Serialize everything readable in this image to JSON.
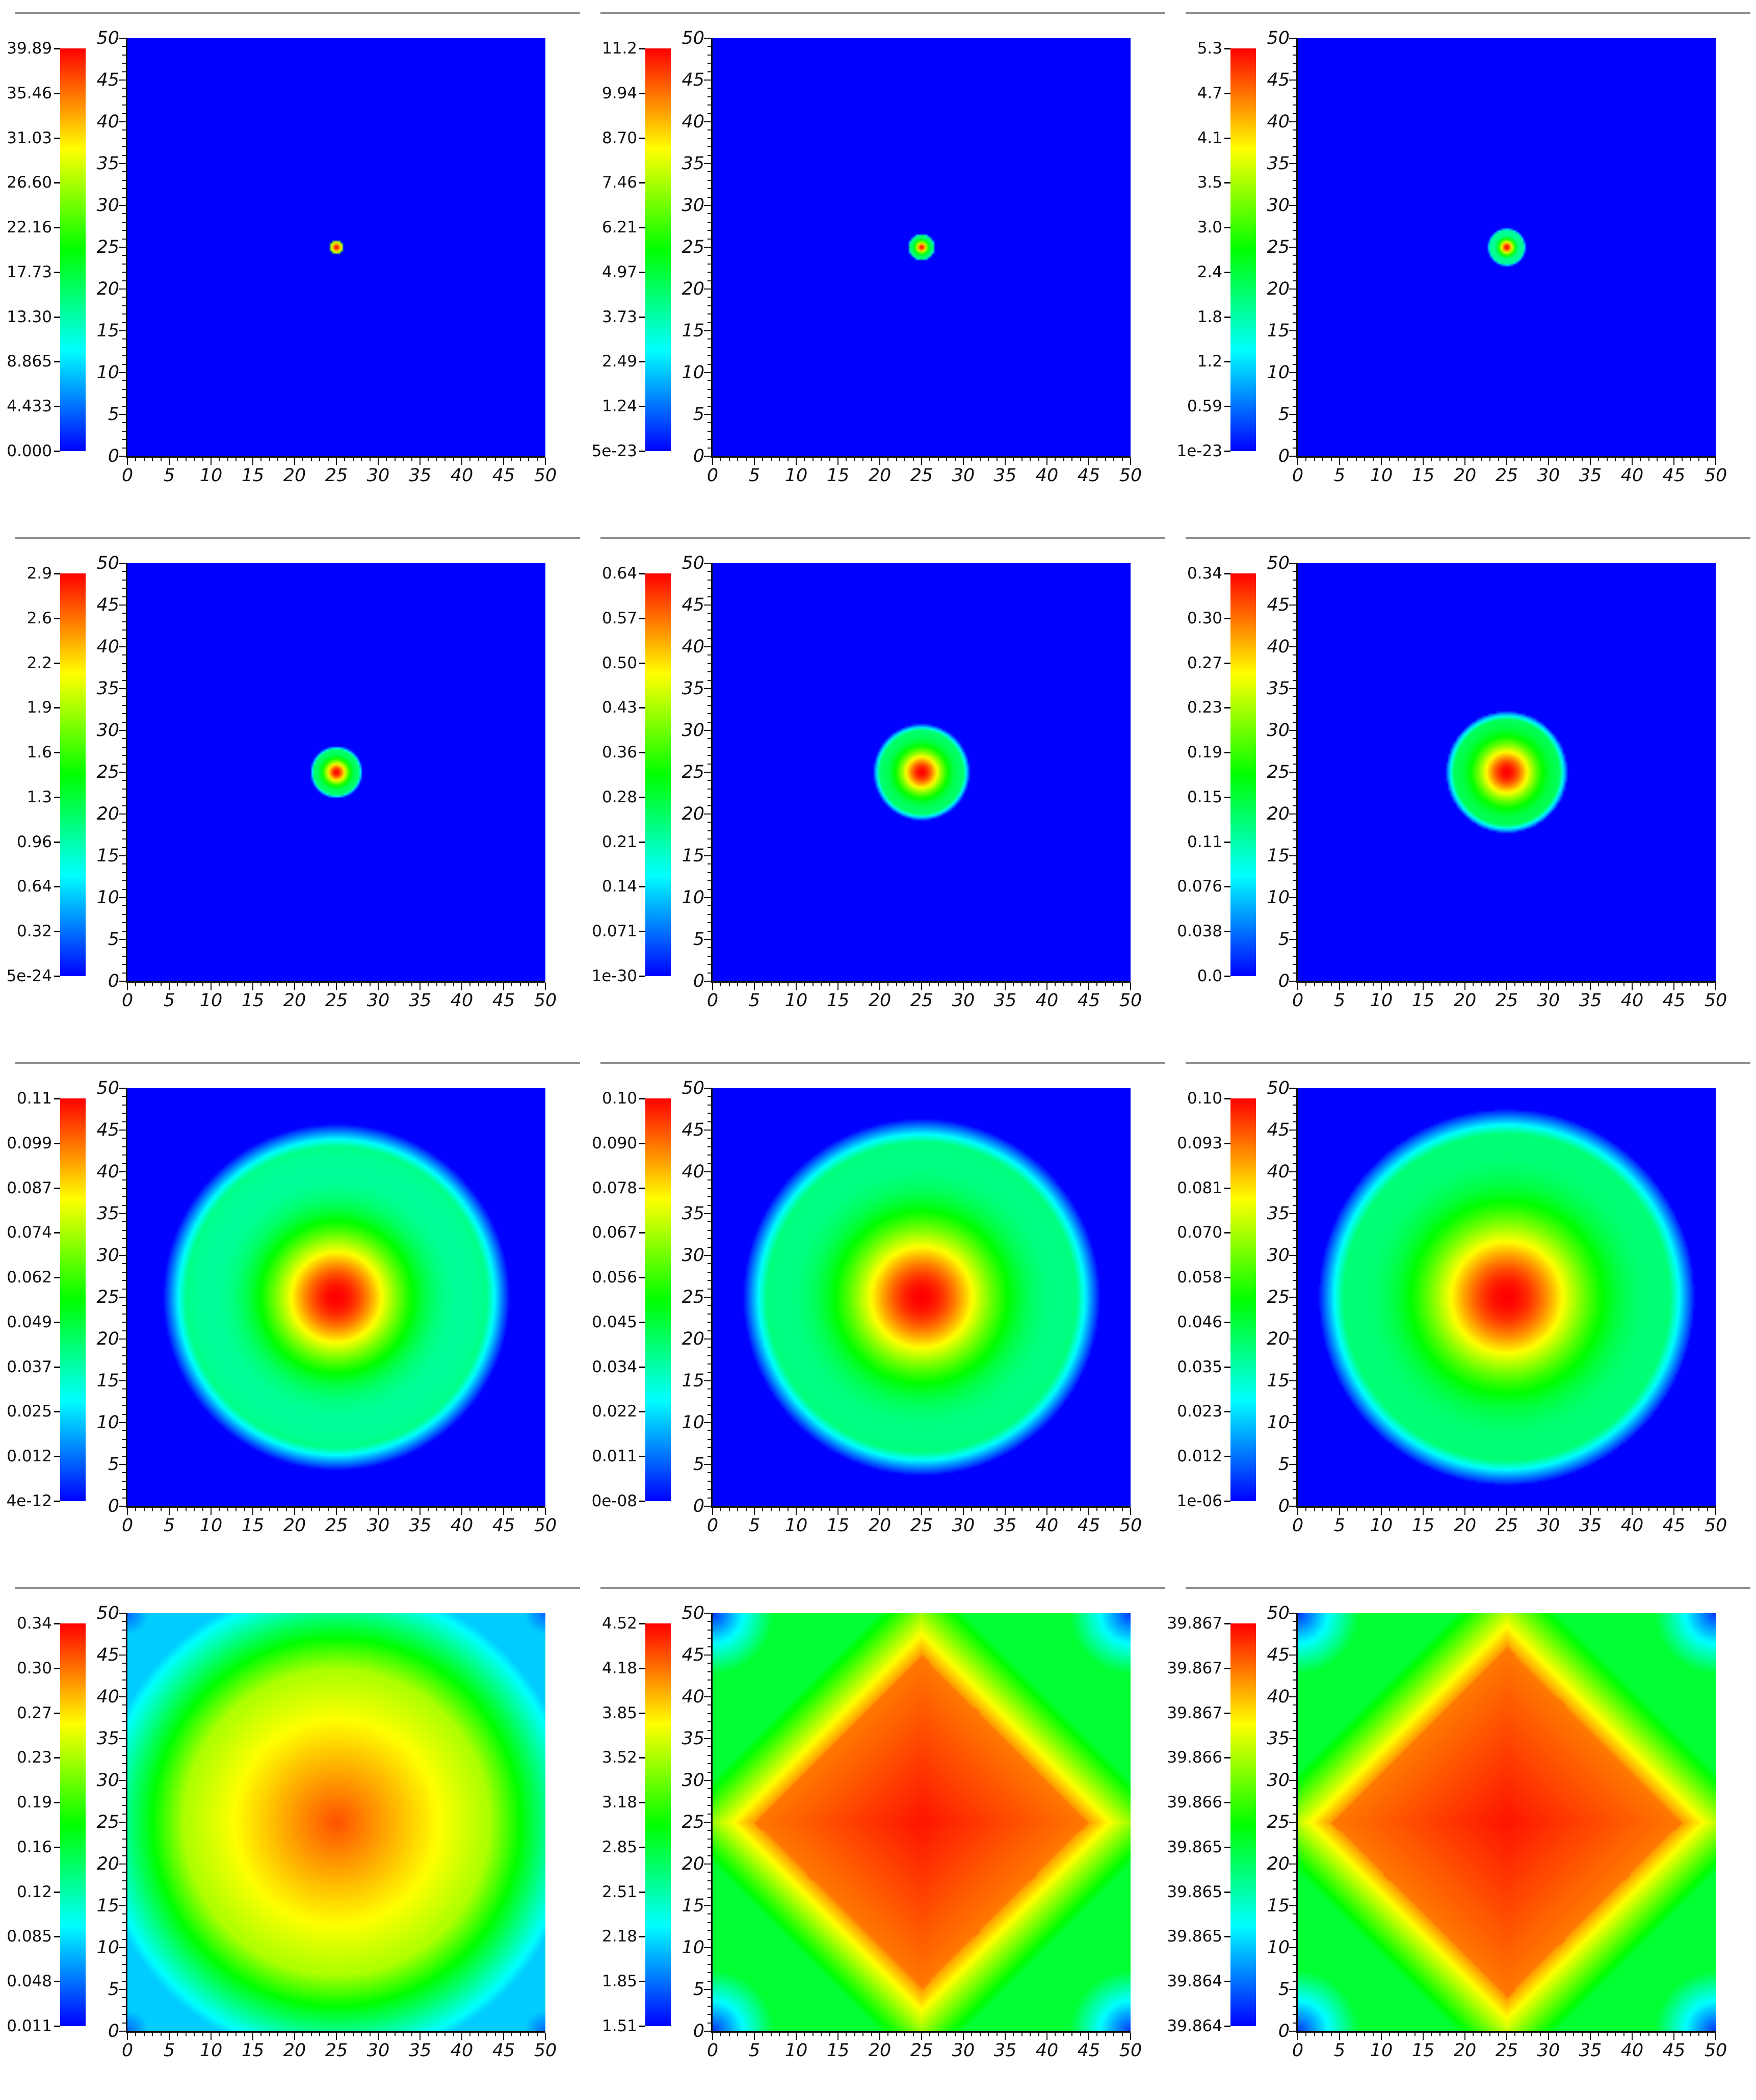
{
  "colors": {
    "background": "#ffffff",
    "divider": "#8c8c8c",
    "colormap": [
      "#0000ff",
      "#00ffff",
      "#00ff00",
      "#ffff00",
      "#ff0000"
    ]
  },
  "chart_data": [
    {
      "type": "heatmap",
      "x_ticks": [
        "0",
        "5",
        "10",
        "15",
        "20",
        "25",
        "30",
        "35",
        "40",
        "45",
        "50"
      ],
      "y_ticks": [
        "0",
        "5",
        "10",
        "15",
        "20",
        "25",
        "30",
        "35",
        "40",
        "45",
        "50"
      ],
      "xlim": [
        0,
        50
      ],
      "ylim": [
        0,
        50
      ],
      "colorbar_labels": [
        "39.89",
        "35.46",
        "31.03",
        "26.60",
        "22.16",
        "17.73",
        "13.30",
        "8.865",
        "4.433",
        "0.000"
      ],
      "pattern": "ring",
      "center": [
        25,
        25
      ],
      "inner_radius": 0,
      "outer_radius": 0.7,
      "background_level": 0.0
    },
    {
      "type": "heatmap",
      "x_ticks": [
        "0",
        "5",
        "10",
        "15",
        "20",
        "25",
        "30",
        "35",
        "40",
        "45",
        "50"
      ],
      "y_ticks": [
        "0",
        "5",
        "10",
        "15",
        "20",
        "25",
        "30",
        "35",
        "40",
        "45",
        "50"
      ],
      "xlim": [
        0,
        50
      ],
      "ylim": [
        0,
        50
      ],
      "colorbar_labels": [
        "11.2",
        "9.94",
        "8.70",
        "7.46",
        "6.21",
        "4.97",
        "3.73",
        "2.49",
        "1.24",
        "5e-23"
      ],
      "pattern": "ring",
      "center": [
        25,
        25
      ],
      "inner_radius": 0.3,
      "outer_radius": 1.4,
      "background_level": 0.0
    },
    {
      "type": "heatmap",
      "x_ticks": [
        "0",
        "5",
        "10",
        "15",
        "20",
        "25",
        "30",
        "35",
        "40",
        "45",
        "50"
      ],
      "y_ticks": [
        "0",
        "5",
        "10",
        "15",
        "20",
        "25",
        "30",
        "35",
        "40",
        "45",
        "50"
      ],
      "xlim": [
        0,
        50
      ],
      "ylim": [
        0,
        50
      ],
      "colorbar_labels": [
        "5.3",
        "4.7",
        "4.1",
        "3.5",
        "3.0",
        "2.4",
        "1.8",
        "1.2",
        "0.59",
        "1e-23"
      ],
      "pattern": "ring",
      "center": [
        25,
        25
      ],
      "inner_radius": 0.5,
      "outer_radius": 2.0,
      "background_level": 0.0
    },
    {
      "type": "heatmap",
      "x_ticks": [
        "0",
        "5",
        "10",
        "15",
        "20",
        "25",
        "30",
        "35",
        "40",
        "45",
        "50"
      ],
      "y_ticks": [
        "0",
        "5",
        "10",
        "15",
        "20",
        "25",
        "30",
        "35",
        "40",
        "45",
        "50"
      ],
      "xlim": [
        0,
        50
      ],
      "ylim": [
        0,
        50
      ],
      "colorbar_labels": [
        "2.9",
        "2.6",
        "2.2",
        "1.9",
        "1.6",
        "1.3",
        "0.96",
        "0.64",
        "0.32",
        "5e-24"
      ],
      "pattern": "ring",
      "center": [
        25,
        25
      ],
      "inner_radius": 0.8,
      "outer_radius": 2.7,
      "background_level": 0.0
    },
    {
      "type": "heatmap",
      "x_ticks": [
        "0",
        "5",
        "10",
        "15",
        "20",
        "25",
        "30",
        "35",
        "40",
        "45",
        "50"
      ],
      "y_ticks": [
        "0",
        "5",
        "10",
        "15",
        "20",
        "25",
        "30",
        "35",
        "40",
        "45",
        "50"
      ],
      "xlim": [
        0,
        50
      ],
      "ylim": [
        0,
        50
      ],
      "colorbar_labels": [
        "0.64",
        "0.57",
        "0.50",
        "0.43",
        "0.36",
        "0.28",
        "0.21",
        "0.14",
        "0.071",
        "1e-30"
      ],
      "pattern": "ring",
      "center": [
        25,
        25
      ],
      "inner_radius": 1.5,
      "outer_radius": 5.0,
      "background_level": 0.0
    },
    {
      "type": "heatmap",
      "x_ticks": [
        "0",
        "5",
        "10",
        "15",
        "20",
        "25",
        "30",
        "35",
        "40",
        "45",
        "50"
      ],
      "y_ticks": [
        "0",
        "5",
        "10",
        "15",
        "20",
        "25",
        "30",
        "35",
        "40",
        "45",
        "50"
      ],
      "xlim": [
        0,
        50
      ],
      "ylim": [
        0,
        50
      ],
      "colorbar_labels": [
        "0.34",
        "0.30",
        "0.27",
        "0.23",
        "0.19",
        "0.15",
        "0.11",
        "0.076",
        "0.038",
        "0.0"
      ],
      "pattern": "ring",
      "center": [
        25,
        25
      ],
      "inner_radius": 2.0,
      "outer_radius": 6.3,
      "background_level": 0.0
    },
    {
      "type": "heatmap",
      "x_ticks": [
        "0",
        "5",
        "10",
        "15",
        "20",
        "25",
        "30",
        "35",
        "40",
        "45",
        "50"
      ],
      "y_ticks": [
        "0",
        "5",
        "10",
        "15",
        "20",
        "25",
        "30",
        "35",
        "40",
        "45",
        "50"
      ],
      "xlim": [
        0,
        50
      ],
      "ylim": [
        0,
        50
      ],
      "colorbar_labels": [
        "0.11",
        "0.099",
        "0.087",
        "0.074",
        "0.062",
        "0.049",
        "0.037",
        "0.025",
        "0.012",
        "4e-12"
      ],
      "pattern": "ring",
      "center": [
        25,
        25
      ],
      "inner_radius": 4.5,
      "outer_radius": 18.0,
      "background_level": 0.0
    },
    {
      "type": "heatmap",
      "x_ticks": [
        "0",
        "5",
        "10",
        "15",
        "20",
        "25",
        "30",
        "35",
        "40",
        "45",
        "50"
      ],
      "y_ticks": [
        "0",
        "5",
        "10",
        "15",
        "20",
        "25",
        "30",
        "35",
        "40",
        "45",
        "50"
      ],
      "xlim": [
        0,
        50
      ],
      "ylim": [
        0,
        50
      ],
      "colorbar_labels": [
        "0.10",
        "0.090",
        "0.078",
        "0.067",
        "0.056",
        "0.045",
        "0.034",
        "0.022",
        "0.011",
        "0e-08"
      ],
      "pattern": "ring",
      "center": [
        25,
        25
      ],
      "inner_radius": 5.0,
      "outer_radius": 18.5,
      "background_level": 0.0
    },
    {
      "type": "heatmap",
      "x_ticks": [
        "0",
        "5",
        "10",
        "15",
        "20",
        "25",
        "30",
        "35",
        "40",
        "45",
        "50"
      ],
      "y_ticks": [
        "0",
        "5",
        "10",
        "15",
        "20",
        "25",
        "30",
        "35",
        "40",
        "45",
        "50"
      ],
      "xlim": [
        0,
        50
      ],
      "ylim": [
        0,
        50
      ],
      "colorbar_labels": [
        "0.10",
        "0.093",
        "0.081",
        "0.070",
        "0.058",
        "0.046",
        "0.035",
        "0.023",
        "0.012",
        "1e-06"
      ],
      "pattern": "ring",
      "center": [
        25,
        25
      ],
      "inner_radius": 5.5,
      "outer_radius": 19.5,
      "background_level": 0.0
    },
    {
      "type": "heatmap",
      "x_ticks": [
        "0",
        "5",
        "10",
        "15",
        "20",
        "25",
        "30",
        "35",
        "40",
        "45",
        "50"
      ],
      "y_ticks": [
        "0",
        "5",
        "10",
        "15",
        "20",
        "25",
        "30",
        "35",
        "40",
        "45",
        "50"
      ],
      "xlim": [
        0,
        50
      ],
      "ylim": [
        0,
        50
      ],
      "colorbar_labels": [
        "0.34",
        "0.30",
        "0.27",
        "0.23",
        "0.19",
        "0.16",
        "0.12",
        "0.085",
        "0.048",
        "0.011"
      ],
      "pattern": "periodic",
      "center": [
        25,
        25
      ],
      "plateau_radius": 18.0,
      "background_level": 0.0
    },
    {
      "type": "heatmap",
      "x_ticks": [
        "0",
        "5",
        "10",
        "15",
        "20",
        "25",
        "30",
        "35",
        "40",
        "45",
        "50"
      ],
      "y_ticks": [
        "0",
        "5",
        "10",
        "15",
        "20",
        "25",
        "30",
        "35",
        "40",
        "45",
        "50"
      ],
      "xlim": [
        0,
        50
      ],
      "ylim": [
        0,
        50
      ],
      "colorbar_labels": [
        "4.52",
        "4.18",
        "3.85",
        "3.52",
        "3.18",
        "2.85",
        "2.51",
        "2.18",
        "1.85",
        "1.51"
      ],
      "pattern": "diamond",
      "center": [
        25,
        25
      ],
      "plateau_radius": 20.0,
      "background_level": 0.0
    },
    {
      "type": "heatmap",
      "x_ticks": [
        "0",
        "5",
        "10",
        "15",
        "20",
        "25",
        "30",
        "35",
        "40",
        "45",
        "50"
      ],
      "y_ticks": [
        "0",
        "5",
        "10",
        "15",
        "20",
        "25",
        "30",
        "35",
        "40",
        "45",
        "50"
      ],
      "xlim": [
        0,
        50
      ],
      "ylim": [
        0,
        50
      ],
      "colorbar_labels": [
        "39.867",
        "39.867",
        "39.867",
        "39.866",
        "39.866",
        "39.865",
        "39.865",
        "39.865",
        "39.864",
        "39.864"
      ],
      "pattern": "diamond",
      "center": [
        25,
        25
      ],
      "plateau_radius": 21.0,
      "background_level": 0.0
    }
  ]
}
